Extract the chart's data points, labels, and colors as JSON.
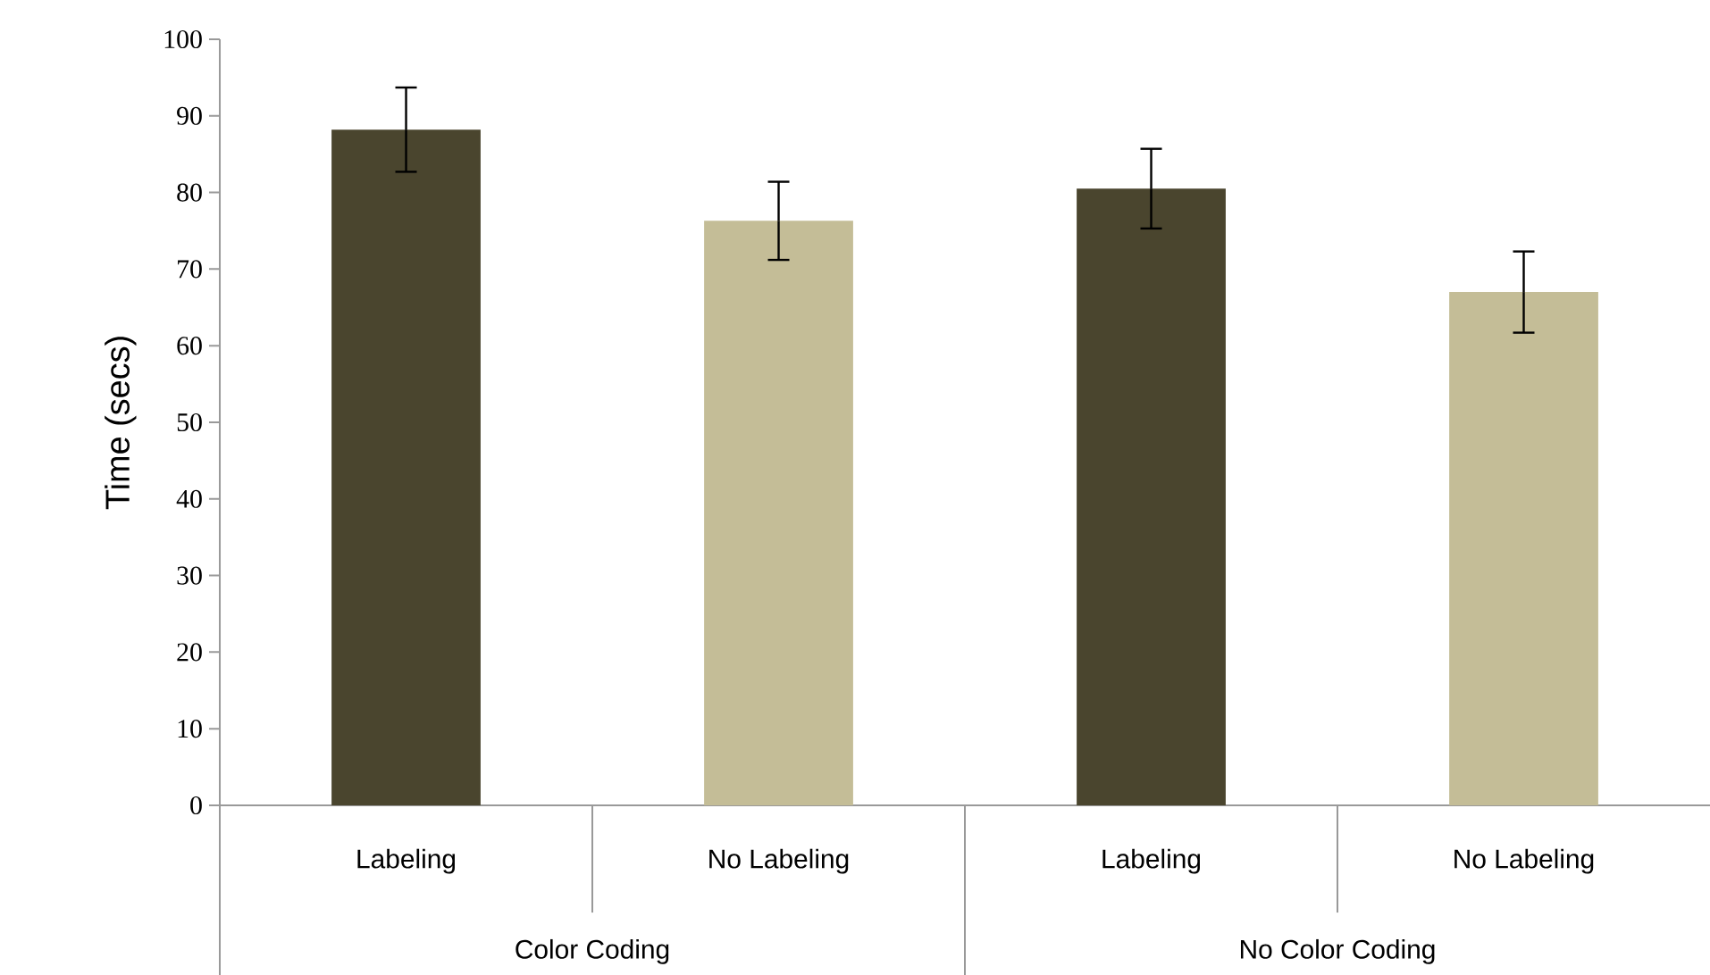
{
  "chart_data": {
    "type": "bar",
    "ylabel": "Time (secs)",
    "categories": [
      "Labeling",
      "No Labeling",
      "Labeling",
      "No Labeling"
    ],
    "values": [
      88.2,
      76.3,
      80.5,
      67.0
    ],
    "errors": [
      5.5,
      5.1,
      5.2,
      5.3
    ],
    "colors": [
      "#4a452e",
      "#c4bd97",
      "#4a452e",
      "#c4bd97"
    ],
    "ylim": [
      0,
      100
    ],
    "yticks": [
      0,
      10,
      20,
      30,
      40,
      50,
      60,
      70,
      80,
      90,
      100
    ],
    "annotations": [
      "Color Coding",
      "No Color Coding"
    ]
  }
}
